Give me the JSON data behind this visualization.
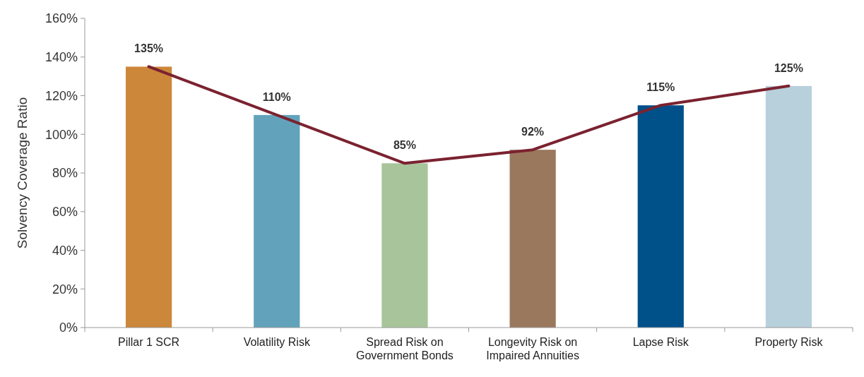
{
  "chart_data": {
    "type": "bar",
    "ylabel": "Solvency Coverage Ratio",
    "categories": [
      "Pillar 1 SCR",
      "Volatility Risk",
      "Spread Risk on Government Bonds",
      "Longevity Risk on Impaired Annuities",
      "Lapse Risk",
      "Property Risk"
    ],
    "series": [
      {
        "values": [
          135,
          110,
          85,
          92,
          115,
          125
        ],
        "colors": [
          "#cc873b",
          "#62a3bb",
          "#a8c49a",
          "#9a785e",
          "#00508a",
          "#b8d0dc"
        ],
        "value_labels": [
          "135%",
          "110%",
          "85%",
          "92%",
          "115%",
          "125%"
        ]
      },
      {
        "type": "line",
        "color": "#7b2230",
        "values": [
          135,
          110,
          85,
          92,
          115,
          125
        ]
      }
    ],
    "ylim": [
      0,
      160
    ],
    "yticks": [
      {
        "value": 0,
        "label": "0%"
      },
      {
        "value": 20,
        "label": "20%"
      },
      {
        "value": 40,
        "label": "40%"
      },
      {
        "value": 60,
        "label": "60%"
      },
      {
        "value": 80,
        "label": "80%"
      },
      {
        "value": 100,
        "label": "100%"
      },
      {
        "value": 120,
        "label": "120%"
      },
      {
        "value": 140,
        "label": "140%"
      },
      {
        "value": 160,
        "label": "160%"
      }
    ]
  }
}
